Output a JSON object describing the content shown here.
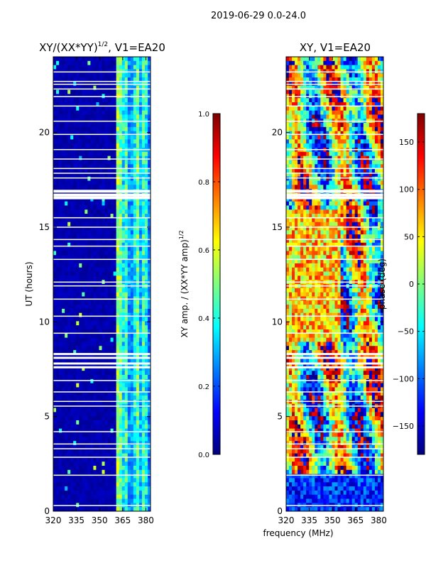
{
  "suptitle": "2019-06-29 0.0-24.0",
  "x_axis_label": "frequency (MHz)",
  "colors": {
    "background": "#ffffff",
    "flagged": "#ffffff",
    "jet": [
      "#00007f",
      "#0000ff",
      "#007fff",
      "#00ffff",
      "#7fff7f",
      "#ffff00",
      "#ff7f00",
      "#ff0000",
      "#7f0000"
    ]
  },
  "chart_data": [
    {
      "id": "amplitude-heatmap",
      "type": "heatmap",
      "title_main": "XY/(XX*YY)",
      "title_sup": "1/2",
      "title_tail": ", V1=EA20",
      "ylabel": "UT (hours)",
      "xlim": [
        320,
        383
      ],
      "ylim": [
        0,
        24
      ],
      "xticks": [
        320,
        335,
        350,
        365,
        380
      ],
      "yticks": [
        0,
        5,
        10,
        15,
        20
      ],
      "colorbar": {
        "label_main": "XY amp. / (XX*YY amp)",
        "label_sup": "1/2",
        "range": [
          0.0,
          1.0
        ],
        "ticks": [
          "0.0",
          "0.2",
          "0.4",
          "0.6",
          "0.8",
          "1.0"
        ]
      }
    },
    {
      "id": "phase-heatmap",
      "type": "heatmap",
      "title_main": "XY, V1=EA20",
      "ylabel": "",
      "xlim": [
        320,
        383
      ],
      "ylim": [
        0,
        24
      ],
      "xticks": [
        320,
        335,
        350,
        365,
        380
      ],
      "yticks": [
        0,
        5,
        10,
        15,
        20
      ],
      "colorbar": {
        "label_main": "phase (deg)",
        "range": [
          -180,
          180
        ],
        "ticks": [
          "−150",
          "−100",
          "−50",
          "0",
          "50",
          "100",
          "150"
        ]
      }
    }
  ],
  "flagged_hours": [
    0.3,
    1.9,
    2.85,
    3.3,
    3.55,
    4.2,
    5.55,
    5.8,
    6.3,
    6.9,
    7.6,
    7.8,
    8.1,
    8.3,
    9.4,
    10.3,
    11.2,
    11.9,
    12.1,
    13.3,
    14.0,
    14.35,
    15.0,
    15.5,
    16.55,
    16.7,
    16.9,
    17.6,
    17.85,
    18.1,
    18.6,
    19.1,
    19.9,
    20.6,
    21.4,
    21.9,
    22.3,
    22.55,
    22.7,
    23.2
  ]
}
